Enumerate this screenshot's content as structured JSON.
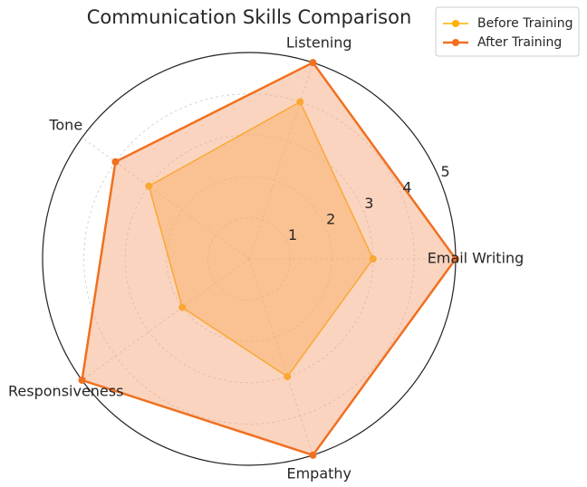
{
  "chart_data": {
    "type": "radar",
    "title": "Communication Skills Comparison",
    "categories": [
      "Email Writing",
      "Listening",
      "Tone",
      "Responsiveness",
      "Empathy"
    ],
    "series": [
      {
        "name": "Before Training",
        "color": "#ffb000",
        "fill": "#ffb74d",
        "values": [
          3,
          4,
          3,
          2,
          3
        ]
      },
      {
        "name": "After Training",
        "color": "#f07020",
        "fill": "#f4a070",
        "values": [
          5,
          5,
          4,
          5,
          5
        ]
      }
    ],
    "ylim": [
      0,
      5
    ],
    "yticks": [
      1,
      2,
      3,
      4,
      5
    ],
    "grid": true,
    "legend": "upper right"
  }
}
